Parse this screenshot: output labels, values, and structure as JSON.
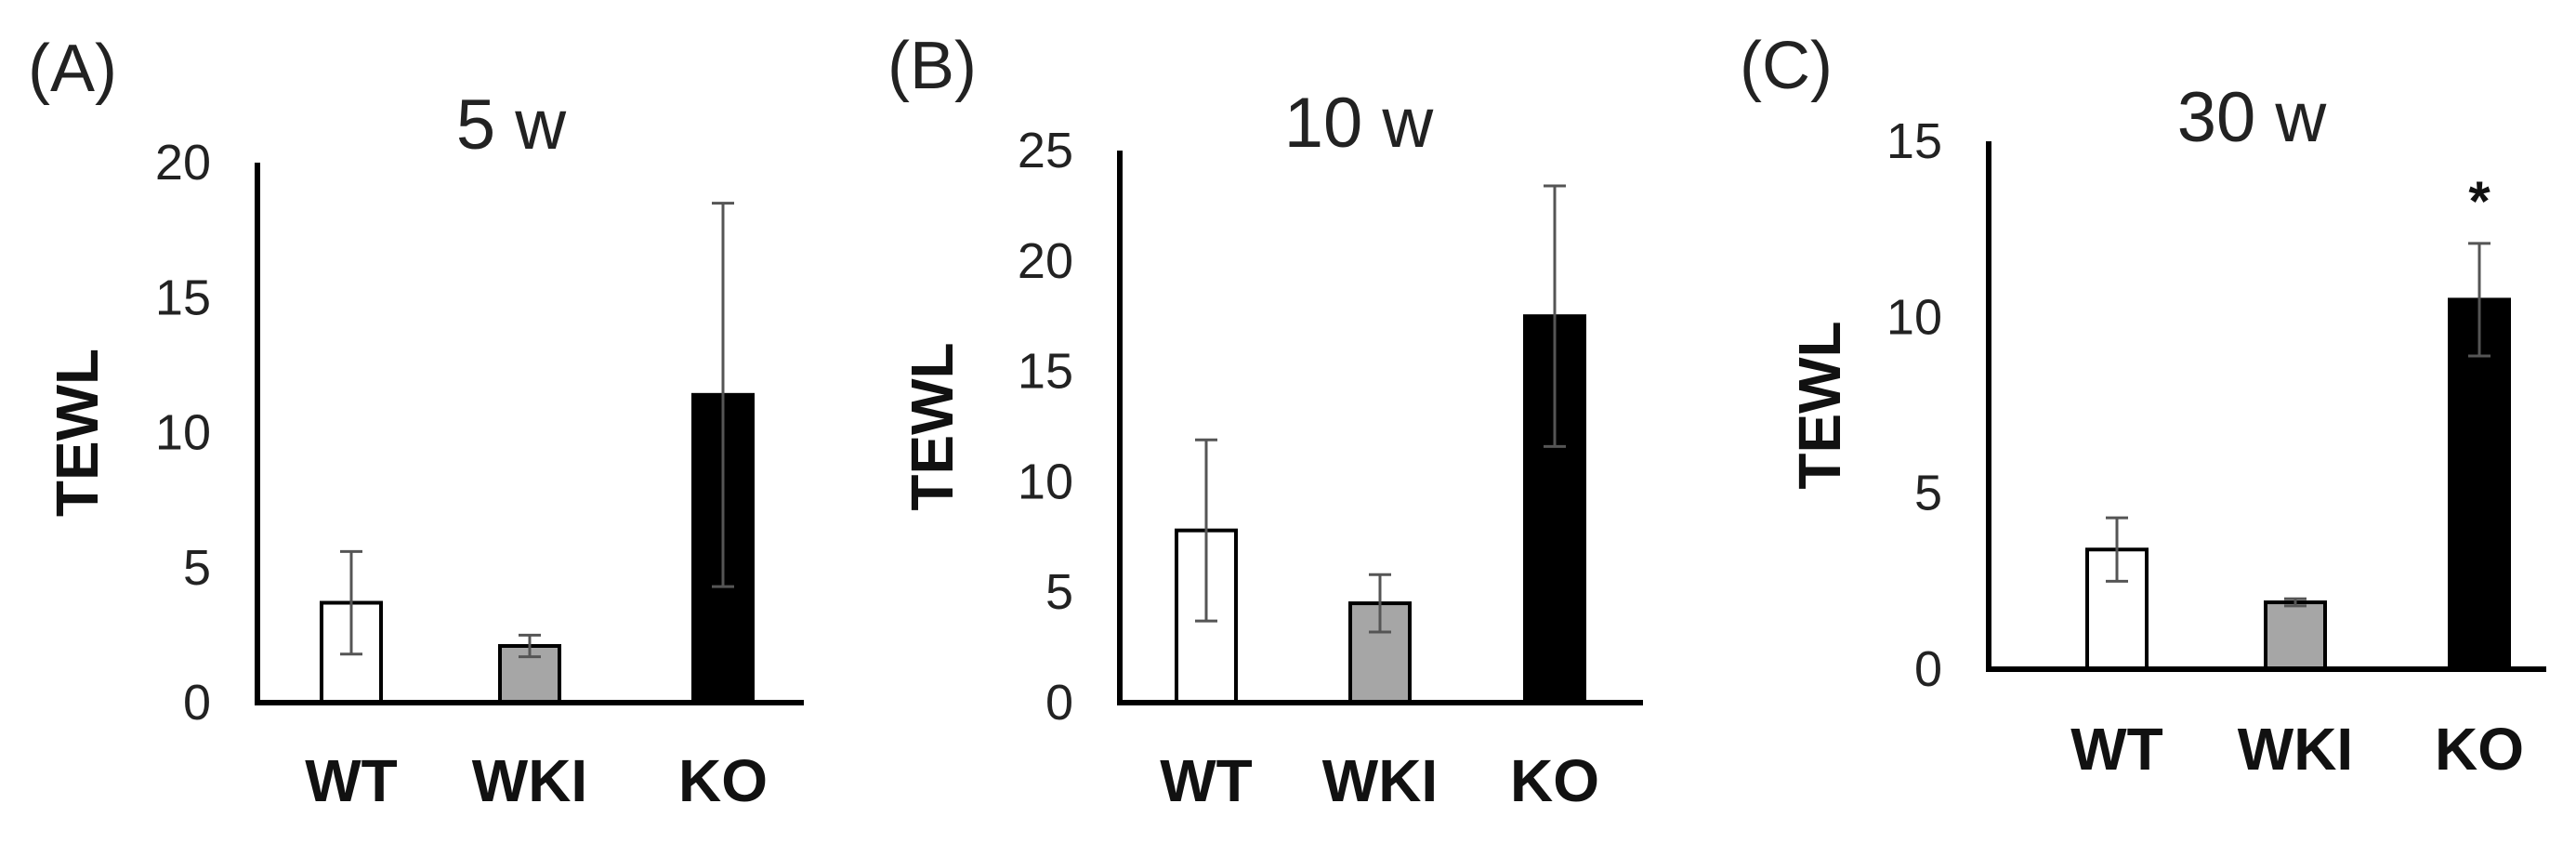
{
  "chart_data": [
    {
      "type": "bar",
      "panel": "(A)",
      "title": "5 w",
      "ylabel": "TEWL",
      "xlabel": "",
      "ylim": [
        0,
        20
      ],
      "yticks": [
        0,
        5,
        10,
        15,
        20
      ],
      "categories": [
        "WT",
        "WKI",
        "KO"
      ],
      "values": [
        3.7,
        2.1,
        11.4
      ],
      "errors": [
        1.9,
        0.4,
        7.1
      ],
      "bar_colors": [
        "#ffffff",
        "#a6a6a6",
        "#000000"
      ],
      "annotations": [
        "",
        "",
        ""
      ]
    },
    {
      "type": "bar",
      "panel": "(B)",
      "title": "10 w",
      "ylabel": "TEWL",
      "xlabel": "",
      "ylim": [
        0,
        25
      ],
      "yticks": [
        0,
        5,
        10,
        15,
        20,
        25
      ],
      "categories": [
        "WT",
        "WKI",
        "KO"
      ],
      "values": [
        7.8,
        4.5,
        17.5
      ],
      "errors": [
        4.1,
        1.3,
        5.9
      ],
      "bar_colors": [
        "#ffffff",
        "#a6a6a6",
        "#000000"
      ],
      "annotations": [
        "",
        "",
        ""
      ]
    },
    {
      "type": "bar",
      "panel": "(C)",
      "title": "30 w",
      "ylabel": "TEWL",
      "xlabel": "",
      "ylim": [
        0,
        15
      ],
      "yticks": [
        0,
        5,
        10,
        15
      ],
      "categories": [
        "WT",
        "WKI",
        "KO"
      ],
      "values": [
        3.4,
        1.9,
        10.5
      ],
      "errors": [
        0.9,
        0.1,
        1.6
      ],
      "bar_colors": [
        "#ffffff",
        "#a6a6a6",
        "#000000"
      ],
      "annotations": [
        "",
        "",
        "*"
      ]
    }
  ]
}
